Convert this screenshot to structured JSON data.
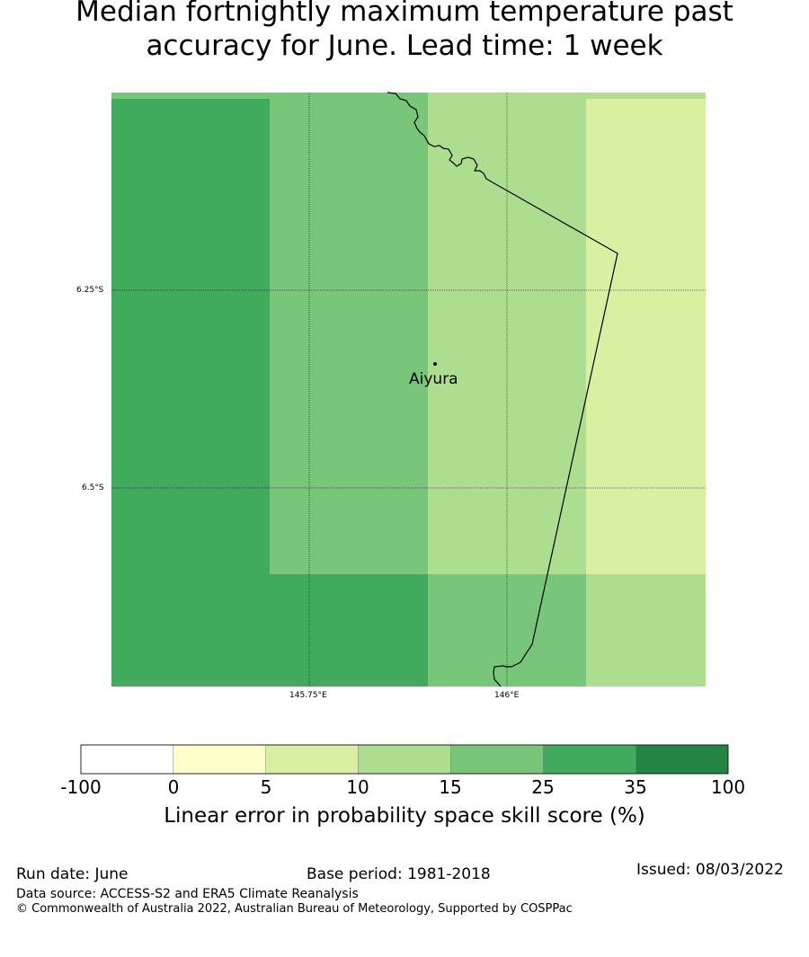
{
  "title_line1": "Median fortnightly maximum temperature past",
  "title_line2": "accuracy for June. Lead time: 1 week",
  "map": {
    "lat_ticks": [
      "6.25°S",
      "6.5°S"
    ],
    "lon_ticks": [
      "145.75°E",
      "146°E"
    ],
    "location": {
      "name": "Aiyura"
    },
    "grid_lines": true,
    "cells": [
      {
        "col": 0,
        "row": 0,
        "category": "25-35"
      },
      {
        "col": 0,
        "row": 1,
        "category": "25-35"
      },
      {
        "col": 0,
        "row": 2,
        "category": "25-35"
      },
      {
        "col": 0,
        "row": 3,
        "category": "25-35"
      },
      {
        "col": 1,
        "row": 0,
        "category": "15-25"
      },
      {
        "col": 1,
        "row": 1,
        "category": "15-25"
      },
      {
        "col": 1,
        "row": 2,
        "category": "15-25"
      },
      {
        "col": 1,
        "row": 3,
        "category": "25-35"
      },
      {
        "col": 2,
        "row": 0,
        "category": "10-15"
      },
      {
        "col": 2,
        "row": 1,
        "category": "10-15"
      },
      {
        "col": 2,
        "row": 2,
        "category": "15-25"
      },
      {
        "col": 2,
        "row": 3,
        "category": "15-25"
      },
      {
        "col": 3,
        "row": 0,
        "category": "5-10"
      },
      {
        "col": 3,
        "row": 1,
        "category": "5-10"
      },
      {
        "col": 3,
        "row": 2,
        "category": "5-10"
      },
      {
        "col": 3,
        "row": 3,
        "category": "10-15"
      }
    ]
  },
  "colorbar": {
    "ticks": [
      "-100",
      "0",
      "5",
      "10",
      "15",
      "25",
      "35",
      "100"
    ],
    "bins": [
      {
        "range": "-100-0",
        "color": "#ffffff"
      },
      {
        "range": "0-5",
        "color": "#ffffcc"
      },
      {
        "range": "5-10",
        "color": "#d9f0a3"
      },
      {
        "range": "10-15",
        "color": "#addd8e"
      },
      {
        "range": "15-25",
        "color": "#78c679"
      },
      {
        "range": "25-35",
        "color": "#41ab5d"
      },
      {
        "range": "35-100",
        "color": "#238443"
      }
    ],
    "label": "Linear error in probability space skill score (%)"
  },
  "footer": {
    "run_date": "Run date: June",
    "base_period": "Base period: 1981-2018",
    "issued": "Issued: 08/03/2022",
    "data_source": "Data source: ACCESS-S2 and ERA5 Climate Reanalysis",
    "copyright": "© Commonwealth of Australia 2022, Australian Bureau of Meteorology, Supported by COSPPac"
  }
}
